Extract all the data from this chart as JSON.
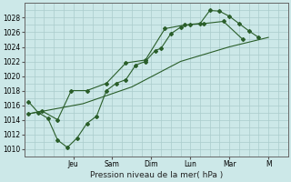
{
  "title": "Pression niveau de la mer( hPa )",
  "bg_color": "#cce8e8",
  "grid_color": "#aacccc",
  "line_color": "#2a5e2a",
  "ylim": [
    1009,
    1030
  ],
  "yticks": [
    1010,
    1012,
    1014,
    1016,
    1018,
    1020,
    1022,
    1024,
    1026,
    1028
  ],
  "xlim": [
    0,
    13.5
  ],
  "x_day_labels": [
    "Jeu",
    "Sam",
    "Dim",
    "Lun",
    "Mar",
    "M"
  ],
  "x_day_positions": [
    2.5,
    4.5,
    6.5,
    8.5,
    10.5,
    12.5
  ],
  "line1_x": [
    0.2,
    0.7,
    1.2,
    1.7,
    2.2,
    2.7,
    3.2,
    3.7,
    4.2,
    4.7,
    5.2,
    5.7,
    6.2,
    6.7,
    7.0,
    7.5,
    8.0,
    8.5,
    9.0,
    9.5,
    10.0,
    10.5,
    11.0,
    11.5,
    12.0
  ],
  "line1_y": [
    1016.5,
    1015.0,
    1014.2,
    1011.2,
    1010.2,
    1011.5,
    1013.5,
    1014.5,
    1018.0,
    1019.0,
    1019.5,
    1021.5,
    1022.0,
    1023.5,
    1023.8,
    1025.8,
    1026.7,
    1027.1,
    1027.2,
    1029.0,
    1028.9,
    1028.2,
    1027.2,
    1026.2,
    1025.3
  ],
  "line2_x": [
    0.2,
    0.9,
    1.7,
    2.4,
    3.2,
    4.2,
    5.2,
    6.2,
    7.2,
    8.2,
    9.2,
    10.2,
    11.2
  ],
  "line2_y": [
    1014.8,
    1015.2,
    1014.0,
    1018.0,
    1018.0,
    1019.0,
    1021.8,
    1022.2,
    1026.5,
    1027.0,
    1027.2,
    1027.5,
    1025.0
  ],
  "line3_x": [
    0.2,
    3.0,
    5.5,
    8.0,
    10.5,
    12.5
  ],
  "line3_y": [
    1014.8,
    1016.2,
    1018.5,
    1022.0,
    1024.0,
    1025.3
  ]
}
